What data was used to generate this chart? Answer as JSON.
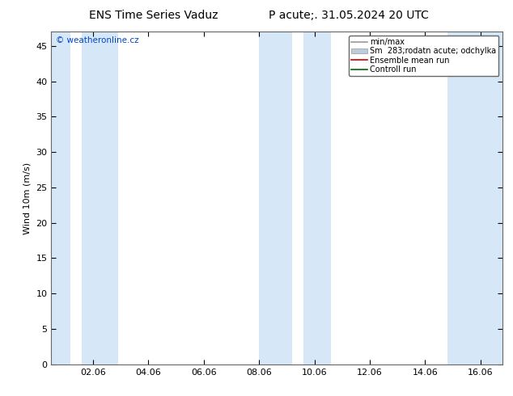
{
  "title_left": "ENS Time Series Vaduz",
  "title_right": "P acute;. 31.05.2024 20 UTC",
  "ylabel": "Wind 10m (m/s)",
  "watermark": "© weatheronline.cz",
  "ylim": [
    0,
    47
  ],
  "yticks": [
    0,
    5,
    10,
    15,
    20,
    25,
    30,
    35,
    40,
    45
  ],
  "xtick_labels": [
    "02.06",
    "04.06",
    "06.06",
    "08.06",
    "10.06",
    "12.06",
    "14.06",
    "16.06"
  ],
  "xtick_positions": [
    2,
    4,
    6,
    8,
    10,
    12,
    14,
    16
  ],
  "xlim": [
    0.5,
    16.8
  ],
  "bg_color": "#ffffff",
  "plot_bg_color": "#ffffff",
  "shaded_bands": [
    [
      0.5,
      1.2
    ],
    [
      1.6,
      2.9
    ],
    [
      8.0,
      9.2
    ],
    [
      9.6,
      10.6
    ],
    [
      14.8,
      16.8
    ]
  ],
  "shade_color": "#d6e8f7",
  "legend_items": [
    {
      "label": "min/max",
      "color": "#999999",
      "type": "hline"
    },
    {
      "label": "Sm  283;rodatn acute; odchylka",
      "color": "#bbccdd",
      "type": "fill"
    },
    {
      "label": "Ensemble mean run",
      "color": "#cc0000",
      "type": "hline"
    },
    {
      "label": "Controll run",
      "color": "#006600",
      "type": "hline"
    }
  ],
  "font_size_title": 10,
  "font_size_axis": 8,
  "font_size_legend": 7,
  "font_size_watermark": 7.5,
  "border_color": "#666666"
}
